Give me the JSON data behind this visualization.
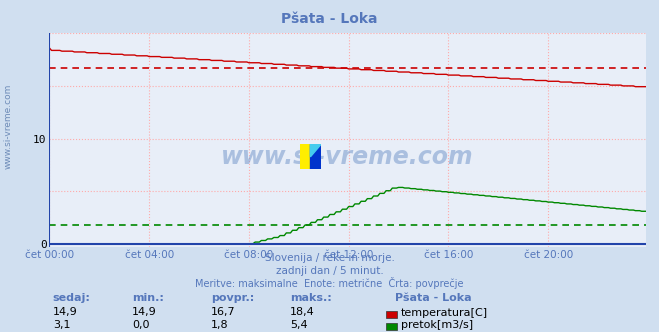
{
  "title": "Pšata - Loka",
  "bg_color": "#d0dff0",
  "plot_bg_color": "#e8eef8",
  "grid_color": "#ffaaaa",
  "xlim": [
    0,
    287
  ],
  "ylim": [
    -0.3,
    20
  ],
  "yticks": [
    0,
    10
  ],
  "xtick_labels": [
    "čet 00:00",
    "čet 04:00",
    "čet 08:00",
    "čet 12:00",
    "čet 16:00",
    "čet 20:00"
  ],
  "xtick_positions": [
    0,
    48,
    96,
    144,
    192,
    240
  ],
  "temp_color": "#cc0000",
  "flow_color": "#008800",
  "avg_temp": 16.7,
  "avg_flow": 1.8,
  "subtitle1": "Slovenija / reke in morje.",
  "subtitle2": "zadnji dan / 5 minut.",
  "subtitle3": "Meritve: maksimalne  Enote: metrične  Črta: povprečje",
  "table_headers": [
    "sedaj:",
    "min.:",
    "povpr.:",
    "maks.:"
  ],
  "table_temp_row": [
    "14,9",
    "14,9",
    "16,7",
    "18,4"
  ],
  "table_flow_row": [
    "3,1",
    "0,0",
    "1,8",
    "5,4"
  ],
  "legend_station": "Pšata - Loka",
  "legend_temp": "temperatura[C]",
  "legend_flow": "pretok[m3/s]",
  "watermark": "www.si-vreme.com",
  "font_color_blue": "#5577bb",
  "axis_color": "#2244aa",
  "left_label": "www.si-vreme.com"
}
